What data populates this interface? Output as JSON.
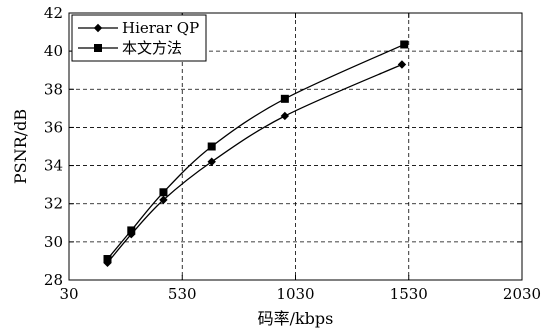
{
  "chart_data": {
    "type": "line",
    "title": "",
    "xlabel": "码率/kbps",
    "ylabel": "PSNR/dB",
    "xlim": [
      30,
      2030
    ],
    "ylim": [
      28,
      42
    ],
    "xticks": [
      30,
      530,
      1030,
      1530,
      2030
    ],
    "yticks": [
      28,
      30,
      32,
      34,
      36,
      38,
      40,
      42
    ],
    "grid": true,
    "legend_position": "top-left",
    "series": [
      {
        "name": "Hierar QP",
        "marker": "diamond",
        "color": "#000000",
        "x": [
          200,
          305,
          447,
          660,
          983,
          1500
        ],
        "y": [
          28.9,
          30.4,
          32.2,
          34.2,
          36.6,
          39.3
        ]
      },
      {
        "name": "本文方法",
        "marker": "square",
        "color": "#000000",
        "x": [
          200,
          305,
          447,
          660,
          983,
          1510
        ],
        "y": [
          29.1,
          30.6,
          32.6,
          35.0,
          37.5,
          40.35
        ]
      }
    ]
  }
}
